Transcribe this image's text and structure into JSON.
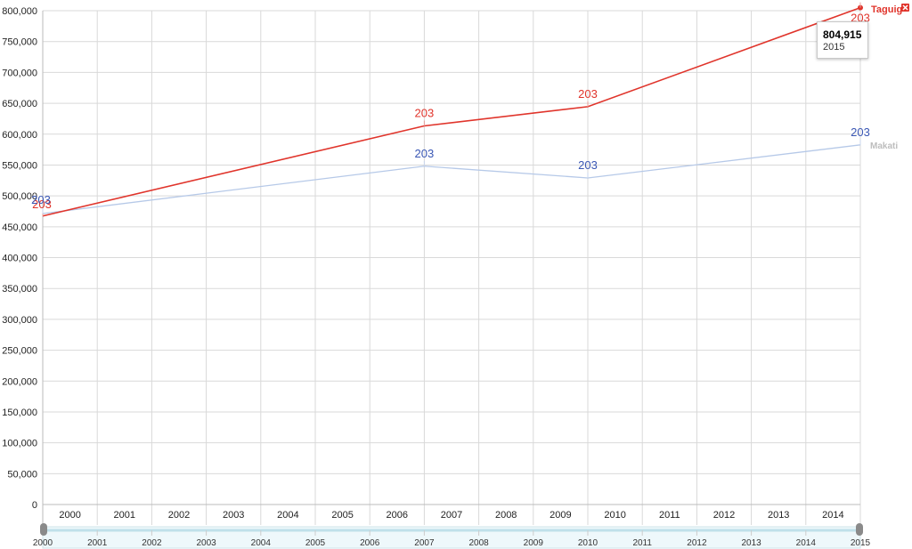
{
  "chart_data": {
    "type": "line",
    "x": [
      2000,
      2007,
      2010,
      2015
    ],
    "xlim": [
      2000,
      2015
    ],
    "xticks": [
      "2000",
      "2001",
      "2002",
      "2003",
      "2004",
      "2005",
      "2006",
      "2007",
      "2008",
      "2009",
      "2010",
      "2011",
      "2012",
      "2013",
      "2014"
    ],
    "ylim": [
      0,
      800000
    ],
    "yticks": [
      "0",
      "50,000",
      "100,000",
      "150,000",
      "200,000",
      "250,000",
      "300,000",
      "350,000",
      "400,000",
      "450,000",
      "500,000",
      "550,000",
      "600,000",
      "650,000",
      "700,000",
      "750,000",
      "800,000"
    ],
    "grid": true,
    "series": [
      {
        "name": "Taguig",
        "values": [
          467375,
          613343,
          644473,
          804915
        ],
        "color": "#e0342b",
        "point_labels": [
          "203",
          "203",
          "203",
          "203"
        ],
        "closable": true
      },
      {
        "name": "Makati",
        "values": [
          471379,
          548054,
          529039,
          582602
        ],
        "color": "#b6c9e8",
        "label_color": "#3a57b4",
        "point_labels": [
          "203",
          "203",
          "203",
          "203"
        ]
      }
    ],
    "tooltip": {
      "value": "804,915",
      "year": "2015"
    },
    "navigator": {
      "labels": [
        "2000",
        "2001",
        "2002",
        "2003",
        "2004",
        "2005",
        "2006",
        "2007",
        "2008",
        "2009",
        "2010",
        "2011",
        "2012",
        "2013",
        "2014",
        "2015"
      ]
    }
  }
}
